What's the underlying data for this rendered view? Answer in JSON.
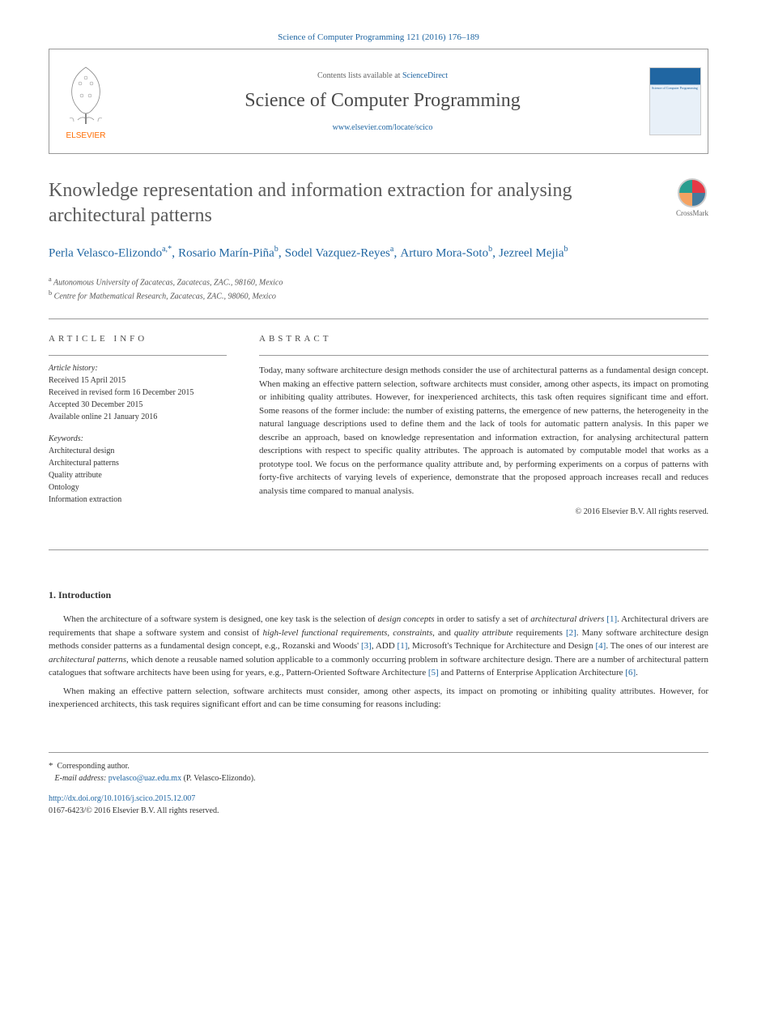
{
  "citation": "Science of Computer Programming 121 (2016) 176–189",
  "header": {
    "contents_prefix": "Contents lists available at ",
    "contents_link": "ScienceDirect",
    "journal": "Science of Computer Programming",
    "journal_url": "www.elsevier.com/locate/scico",
    "publisher": "ELSEVIER"
  },
  "title": "Knowledge representation and information extraction for analysing architectural patterns",
  "crossmark": "CrossMark",
  "authors": [
    {
      "name": "Perla Velasco-Elizondo",
      "aff": "a,",
      "mark": "*"
    },
    {
      "name": "Rosario Marín-Piña",
      "aff": "b"
    },
    {
      "name": "Sodel Vazquez-Reyes",
      "aff": "a"
    },
    {
      "name": "Arturo Mora-Soto",
      "aff": "b"
    },
    {
      "name": "Jezreel Mejia",
      "aff": "b"
    }
  ],
  "affiliations": [
    {
      "mark": "a",
      "text": "Autonomous University of Zacatecas, Zacatecas, ZAC., 98160, Mexico"
    },
    {
      "mark": "b",
      "text": "Centre for Mathematical Research, Zacatecas, ZAC., 98060, Mexico"
    }
  ],
  "article_info": {
    "heading": "ARTICLE INFO",
    "history_label": "Article history:",
    "history": [
      "Received 15 April 2015",
      "Received in revised form 16 December 2015",
      "Accepted 30 December 2015",
      "Available online 21 January 2016"
    ],
    "keywords_label": "Keywords:",
    "keywords": [
      "Architectural design",
      "Architectural patterns",
      "Quality attribute",
      "Ontology",
      "Information extraction"
    ]
  },
  "abstract": {
    "heading": "ABSTRACT",
    "text": "Today, many software architecture design methods consider the use of architectural patterns as a fundamental design concept. When making an effective pattern selection, software architects must consider, among other aspects, its impact on promoting or inhibiting quality attributes. However, for inexperienced architects, this task often requires significant time and effort. Some reasons of the former include: the number of existing patterns, the emergence of new patterns, the heterogeneity in the natural language descriptions used to define them and the lack of tools for automatic pattern analysis. In this paper we describe an approach, based on knowledge representation and information extraction, for analysing architectural pattern descriptions with respect to specific quality attributes. The approach is automated by computable model that works as a prototype tool. We focus on the performance quality attribute and, by performing experiments on a corpus of patterns with forty-five architects of varying levels of experience, demonstrate that the proposed approach increases recall and reduces analysis time compared to manual analysis.",
    "copyright": "© 2016 Elsevier B.V. All rights reserved."
  },
  "section1": {
    "heading": "1. Introduction",
    "para1_parts": [
      "When the architecture of a software system is designed, one key task is the selection of ",
      "design concepts",
      " in order to satisfy a set of ",
      "architectural drivers",
      " ",
      "[1]",
      ". Architectural drivers are requirements that shape a software system and consist of ",
      "high-level functional requirements, constraints",
      ", and ",
      "quality attribute",
      " requirements ",
      "[2]",
      ". Many software architecture design methods consider patterns as a fundamental design concept, e.g., Rozanski and Woods' ",
      "[3]",
      ", ADD ",
      "[1]",
      ", Microsoft's Technique for Architecture and Design ",
      "[4]",
      ". The ones of our interest are ",
      "architectural patterns",
      ", which denote a reusable named solution applicable to a commonly occurring problem in software architecture design. There are a number of architectural pattern catalogues that software architects have been using for years, e.g., Pattern-Oriented Software Architecture ",
      "[5]",
      " and Patterns of Enterprise Application Architecture ",
      "[6]",
      "."
    ],
    "para2": "When making an effective pattern selection, software architects must consider, among other aspects, its impact on promoting or inhibiting quality attributes. However, for inexperienced architects, this task requires significant effort and can be time consuming for reasons including:"
  },
  "footer": {
    "corr_label": "Corresponding author.",
    "email_label": "E-mail address:",
    "email": "pvelasco@uaz.edu.mx",
    "email_owner": "(P. Velasco-Elizondo).",
    "doi": "http://dx.doi.org/10.1016/j.scico.2015.12.007",
    "issn_line": "0167-6423/© 2016 Elsevier B.V. All rights reserved."
  },
  "colors": {
    "link": "#2066a2",
    "elsevier_orange": "#ff6c00",
    "text": "#333333",
    "heading_gray": "#5a5a5a",
    "border": "#999999"
  }
}
